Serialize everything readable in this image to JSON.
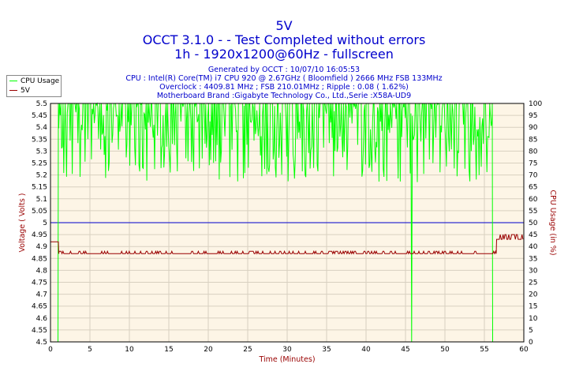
{
  "header": {
    "title": "5V",
    "subtitle1": "OCCT 3.1.0 -  - Test Completed without errors",
    "subtitle2": "1h - 1920x1200@60Hz - fullscreen",
    "info1": "Generated by OCCT : 10/07/10 16:05:53",
    "info2": "CPU : Intel(R) Core(TM) i7 CPU 920 @ 2.67GHz ( Bloomfield ) 2666 MHz FSB 133MHz",
    "info3": "Overclock : 4409.81 MHz ; FSB 210.01MHz ; Ripple : 0.08 ( 1.62%)",
    "info4": "Motherboard Brand :Gigabyte Technology Co., Ltd.,Serie :X58A-UD9"
  },
  "legend": {
    "items": [
      "CPU Usage",
      "5V"
    ]
  },
  "chart_data": {
    "type": "line",
    "xlabel": "Time (Minutes)",
    "ylabel_left": "Voltage ( Volts )",
    "ylabel_right": "CPU Usage (in %)",
    "xlim": [
      0,
      60
    ],
    "ylim_left": [
      4.5,
      5.5
    ],
    "ylim_right": [
      0,
      100
    ],
    "x_ticks": [
      0,
      5,
      10,
      15,
      20,
      25,
      30,
      35,
      40,
      45,
      50,
      55,
      60
    ],
    "y_ticks_left": [
      "4.5",
      "4.55",
      "4.6",
      "4.65",
      "4.7",
      "4.75",
      "4.8",
      "4.85",
      "4.9",
      "4.95",
      "5",
      "5.05",
      "5.1",
      "5.15",
      "5.2",
      "5.25",
      "5.3",
      "5.35",
      "5.4",
      "5.45",
      "5.5"
    ],
    "y_ticks_right": [
      "0",
      "5",
      "10",
      "15",
      "20",
      "25",
      "30",
      "35",
      "40",
      "45",
      "50",
      "55",
      "60",
      "65",
      "70",
      "75",
      "80",
      "85",
      "90",
      "95",
      "100"
    ],
    "reference_line_left": 5.0,
    "series": [
      {
        "name": "CPU Usage",
        "axis": "right",
        "description_values": {
          "start_percent": 0,
          "ramp_end_minute": 1,
          "typical_range": [
            67,
            100
          ],
          "dip_minute": 45.8,
          "dip_value": 0,
          "end_minute": 56,
          "end_value": 0
        }
      },
      {
        "name": "5V",
        "axis": "left",
        "description_values": {
          "start_value": 4.92,
          "baseline": 4.87,
          "high_steps": 4.88,
          "end_segment_from_minute": 56.5,
          "end_baseline": 4.93,
          "end_high": 4.95
        }
      }
    ],
    "grid": true,
    "legend_position": "top-left",
    "colors": {
      "cpu": "#00ff00",
      "voltage": "#990000",
      "reference": "#0000cc",
      "plot_background": "#fdf5e6",
      "grid": "#d8d0c0",
      "title": "#0000cc"
    }
  }
}
